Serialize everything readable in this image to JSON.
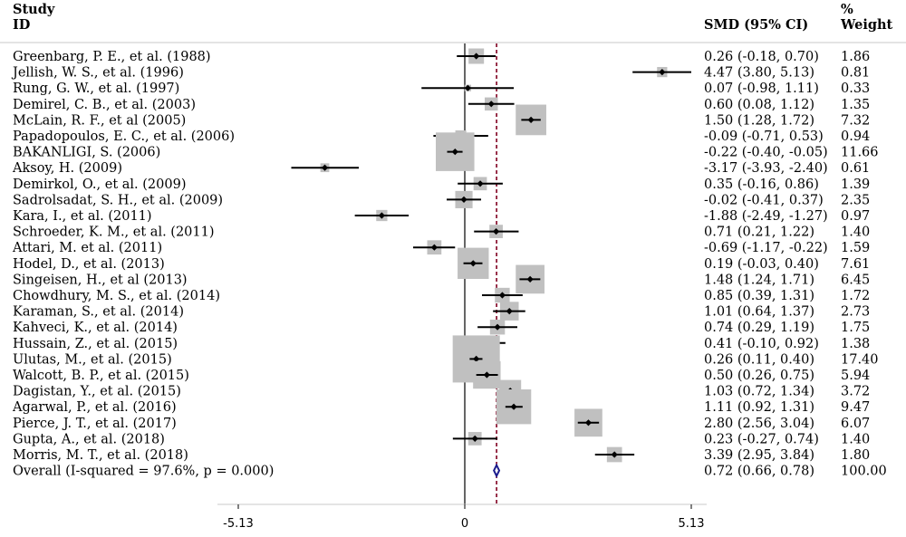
{
  "chart_data": {
    "type": "forest",
    "header": {
      "study_line1": "Study",
      "study_line2": "ID",
      "effect": "SMD (95% CI)",
      "weight_line1": "%",
      "weight_line2": "Weight"
    },
    "x_range": [
      -5.13,
      5.13
    ],
    "x_ticks": [
      {
        "value": -5.13,
        "label": "-5.13"
      },
      {
        "value": 0,
        "label": "0"
      },
      {
        "value": 5.13,
        "label": "5.13"
      }
    ],
    "reference_line": 0,
    "overall_line": 0.72,
    "colors": {
      "box": "#c0c0c0",
      "diamond": "#1c1c8c",
      "overall_line": "#800020",
      "line": "#000000"
    },
    "studies": [
      {
        "id": "Greenbarg, P. E., et al. (1988)",
        "smd": 0.26,
        "lo": -0.18,
        "hi": 0.7,
        "ci_text": "0.26 (-0.18, 0.70)",
        "weight": 1.86,
        "weight_text": "1.86"
      },
      {
        "id": "Jellish, W. S., et al. (1996)",
        "smd": 4.47,
        "lo": 3.8,
        "hi": 5.13,
        "ci_text": "4.47 (3.80, 5.13)",
        "weight": 0.81,
        "weight_text": "0.81"
      },
      {
        "id": "Rung, G. W., et al. (1997)",
        "smd": 0.07,
        "lo": -0.98,
        "hi": 1.11,
        "ci_text": "0.07 (-0.98, 1.11)",
        "weight": 0.33,
        "weight_text": "0.33"
      },
      {
        "id": "Demirel, C. B., et al. (2003)",
        "smd": 0.6,
        "lo": 0.08,
        "hi": 1.12,
        "ci_text": "0.60 (0.08, 1.12)",
        "weight": 1.35,
        "weight_text": "1.35"
      },
      {
        "id": "McLain, R. F., et al (2005)",
        "smd": 1.5,
        "lo": 1.28,
        "hi": 1.72,
        "ci_text": "1.50 (1.28, 1.72)",
        "weight": 7.32,
        "weight_text": "7.32"
      },
      {
        "id": "Papadopoulos, E. C., et al. (2006)",
        "smd": -0.09,
        "lo": -0.71,
        "hi": 0.53,
        "ci_text": "-0.09 (-0.71, 0.53)",
        "weight": 0.94,
        "weight_text": "0.94"
      },
      {
        "id": "BAKANLIGI, S. (2006)",
        "smd": -0.22,
        "lo": -0.4,
        "hi": -0.05,
        "ci_text": "-0.22 (-0.40, -0.05)",
        "weight": 11.66,
        "weight_text": "11.66"
      },
      {
        "id": "Aksoy, H. (2009)",
        "smd": -3.17,
        "lo": -3.93,
        "hi": -2.4,
        "ci_text": "-3.17 (-3.93, -2.40)",
        "weight": 0.61,
        "weight_text": "0.61"
      },
      {
        "id": "Demirkol, O., et al. (2009)",
        "smd": 0.35,
        "lo": -0.16,
        "hi": 0.86,
        "ci_text": "0.35 (-0.16, 0.86)",
        "weight": 1.39,
        "weight_text": "1.39"
      },
      {
        "id": "Sadrolsadat, S. H., et al. (2009)",
        "smd": -0.02,
        "lo": -0.41,
        "hi": 0.37,
        "ci_text": "-0.02 (-0.41, 0.37)",
        "weight": 2.35,
        "weight_text": "2.35"
      },
      {
        "id": "Kara, I., et al. (2011)",
        "smd": -1.88,
        "lo": -2.49,
        "hi": -1.27,
        "ci_text": "-1.88 (-2.49, -1.27)",
        "weight": 0.97,
        "weight_text": "0.97"
      },
      {
        "id": "Schroeder, K. M., et al. (2011)",
        "smd": 0.71,
        "lo": 0.21,
        "hi": 1.22,
        "ci_text": "0.71 (0.21, 1.22)",
        "weight": 1.4,
        "weight_text": "1.40"
      },
      {
        "id": "Attari, M. et  al. (2011)",
        "smd": -0.69,
        "lo": -1.17,
        "hi": -0.22,
        "ci_text": "-0.69 (-1.17, -0.22)",
        "weight": 1.59,
        "weight_text": "1.59"
      },
      {
        "id": "Hodel, D., et al. (2013)",
        "smd": 0.19,
        "lo": -0.03,
        "hi": 0.4,
        "ci_text": "0.19 (-0.03, 0.40)",
        "weight": 7.61,
        "weight_text": "7.61"
      },
      {
        "id": "Singeisen, H., et al (2013)",
        "smd": 1.48,
        "lo": 1.24,
        "hi": 1.71,
        "ci_text": "1.48 (1.24, 1.71)",
        "weight": 6.45,
        "weight_text": "6.45"
      },
      {
        "id": "Chowdhury, M. S., et al. (2014)",
        "smd": 0.85,
        "lo": 0.39,
        "hi": 1.31,
        "ci_text": "0.85 (0.39, 1.31)",
        "weight": 1.72,
        "weight_text": "1.72"
      },
      {
        "id": "Karaman, S., et al. (2014)",
        "smd": 1.01,
        "lo": 0.64,
        "hi": 1.37,
        "ci_text": "1.01 (0.64, 1.37)",
        "weight": 2.73,
        "weight_text": "2.73"
      },
      {
        "id": "Kahveci, K., et al. (2014)",
        "smd": 0.74,
        "lo": 0.29,
        "hi": 1.19,
        "ci_text": "0.74 (0.29, 1.19)",
        "weight": 1.75,
        "weight_text": "1.75"
      },
      {
        "id": "Hussain, Z., et al. (2015)",
        "smd": 0.41,
        "lo": -0.1,
        "hi": 0.92,
        "ci_text": "0.41 (-0.10, 0.92)",
        "weight": 1.38,
        "weight_text": "1.38"
      },
      {
        "id": "Ulutas, M., et al. (2015)",
        "smd": 0.26,
        "lo": 0.11,
        "hi": 0.4,
        "ci_text": "0.26 (0.11, 0.40)",
        "weight": 17.4,
        "weight_text": "17.40"
      },
      {
        "id": "Walcott, B. P., et al. (2015)",
        "smd": 0.5,
        "lo": 0.26,
        "hi": 0.75,
        "ci_text": "0.50 (0.26, 0.75)",
        "weight": 5.94,
        "weight_text": "5.94"
      },
      {
        "id": "Dagistan, Y., et al. (2015)",
        "smd": 1.03,
        "lo": 0.72,
        "hi": 1.34,
        "ci_text": "1.03 (0.72, 1.34)",
        "weight": 3.72,
        "weight_text": "3.72"
      },
      {
        "id": "Agarwal, P., et al. (2016)",
        "smd": 1.11,
        "lo": 0.92,
        "hi": 1.31,
        "ci_text": "1.11 (0.92, 1.31)",
        "weight": 9.47,
        "weight_text": "9.47"
      },
      {
        "id": "Pierce, J. T., et al. (2017)",
        "smd": 2.8,
        "lo": 2.56,
        "hi": 3.04,
        "ci_text": "2.80 (2.56, 3.04)",
        "weight": 6.07,
        "weight_text": "6.07"
      },
      {
        "id": "Gupta, A., et al. (2018)",
        "smd": 0.23,
        "lo": -0.27,
        "hi": 0.74,
        "ci_text": "0.23 (-0.27, 0.74)",
        "weight": 1.4,
        "weight_text": "1.40"
      },
      {
        "id": "Morris, M. T., et al. (2018)",
        "smd": 3.39,
        "lo": 2.95,
        "hi": 3.84,
        "ci_text": "3.39 (2.95, 3.84)",
        "weight": 1.8,
        "weight_text": "1.80"
      }
    ],
    "overall": {
      "id": "Overall (I-squared = 97.6%, p = 0.000)",
      "smd": 0.72,
      "lo": 0.66,
      "hi": 0.78,
      "ci_text": "0.72 (0.66, 0.78)",
      "weight_text": "100.00"
    }
  }
}
